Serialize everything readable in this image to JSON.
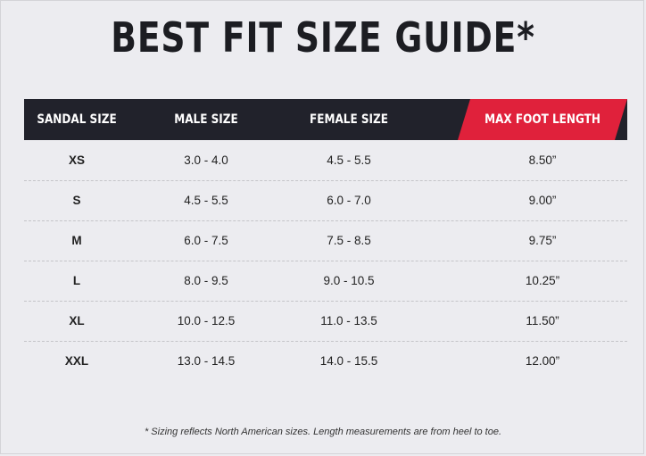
{
  "title": "BEST FIT SIZE GUIDE*",
  "columns": [
    "SANDAL SIZE",
    "MALE SIZE",
    "FEMALE SIZE",
    "MAX FOOT LENGTH"
  ],
  "rows": [
    {
      "size": "XS",
      "male": "3.0 - 4.0",
      "female": "4.5 - 5.5",
      "length": "8.50”"
    },
    {
      "size": "S",
      "male": "4.5 - 5.5",
      "female": "6.0 - 7.0",
      "length": "9.00”"
    },
    {
      "size": "M",
      "male": "6.0 - 7.5",
      "female": "7.5 - 8.5",
      "length": "9.75”"
    },
    {
      "size": "L",
      "male": "8.0 - 9.5",
      "female": "9.0 - 10.5",
      "length": "10.25”"
    },
    {
      "size": "XL",
      "male": "10.0 - 12.5",
      "female": "11.0 - 13.5",
      "length": "11.50”"
    },
    {
      "size": "XXL",
      "male": "13.0 - 14.5",
      "female": "14.0 - 15.5",
      "length": "12.00”"
    }
  ],
  "footnote": "* Sizing reflects North American sizes. Length measurements are from heel to toe.",
  "colors": {
    "header_dark": "#21222b",
    "header_accent": "#e0213b",
    "background": "#ececf0"
  }
}
